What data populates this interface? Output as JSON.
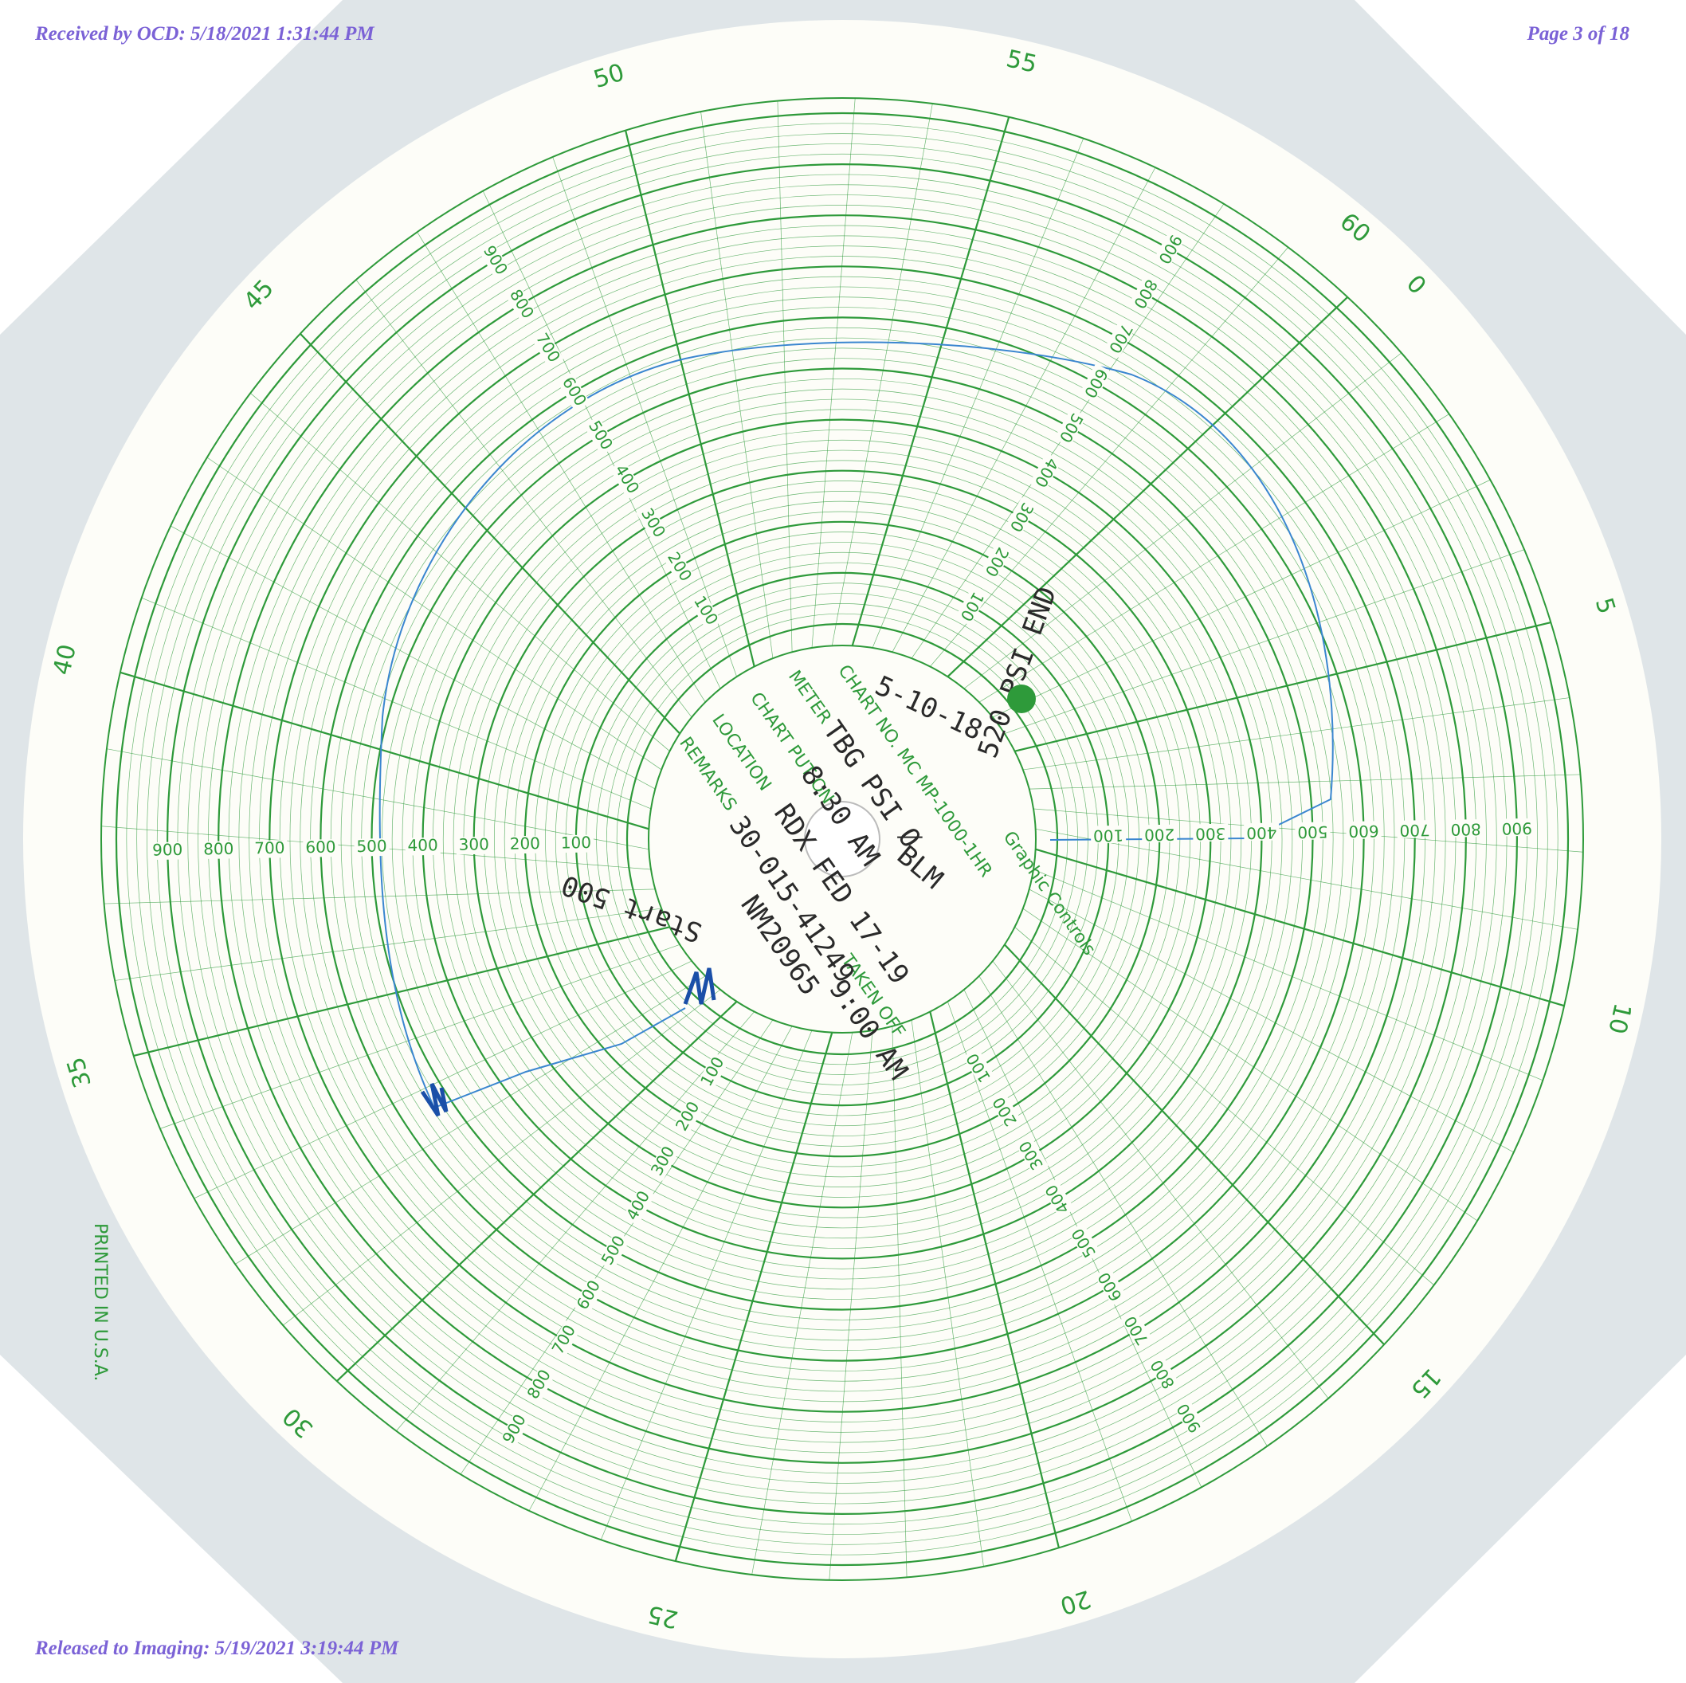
{
  "header": {
    "received": "Received by OCD: 5/18/2021 1:31:44 PM",
    "page": "Page 3 of 18"
  },
  "footer": {
    "released": "Released to Imaging: 5/19/2021 3:19:44 PM"
  },
  "chart_disc": {
    "minute_labels": [
      "0",
      "5",
      "10",
      "15",
      "20",
      "25",
      "30",
      "35",
      "40",
      "45",
      "50",
      "55"
    ],
    "end_label": "60",
    "pressure_labels": [
      "100",
      "200",
      "300",
      "400",
      "500",
      "600",
      "700",
      "800",
      "900"
    ],
    "chart_no": "CHART NO. MC MP-1000-1HR",
    "brand": "Graphic Controls",
    "fields": {
      "meter": "METER",
      "put_on": "CHART PUT ON",
      "location": "LOCATION",
      "remarks": "REMARKS",
      "taken_off": "TAKEN OFF"
    },
    "printed": "PRINTED IN U.S.A."
  },
  "handwriting": {
    "date": "5-10-18",
    "meter": "TBG PSI Ø",
    "put_on": "8:30 AM",
    "location": "RDX FED 17-19",
    "remarks": "30-015-41249",
    "lease": "NM20965",
    "agency": "BLM",
    "end": "520 PSI END",
    "taken_off": "9:00 AM",
    "start": "Start 500"
  }
}
